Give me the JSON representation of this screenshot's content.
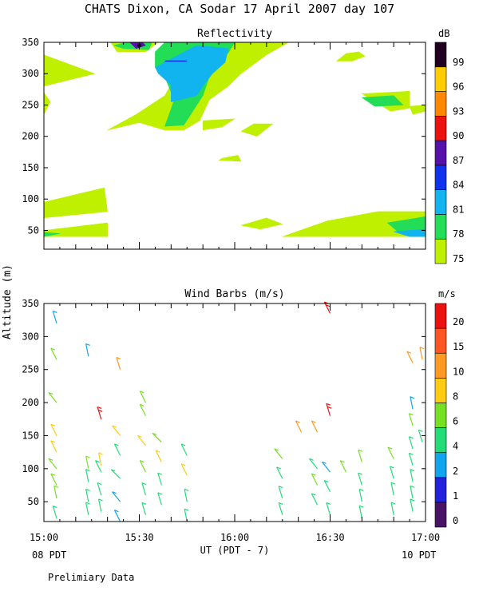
{
  "title": "CHATS Dixon, CA  Sodar  17 April 2007  day 107",
  "y_axis_label": "Altitude (m)",
  "x_axis_label": "UT  (PDT - 7)",
  "footer_left_time": "08 PDT",
  "footer_right_time": "10 PDT",
  "footer_note": "Prelimiary Data",
  "chart_data": [
    {
      "type": "heatmap",
      "title": "Reflectivity",
      "colorbar_unit": "dB",
      "xlim": [
        900,
        1020
      ],
      "ylim": [
        20,
        350
      ],
      "x_ticks": [
        {
          "minute": 900,
          "label": "15:00"
        },
        {
          "minute": 930,
          "label": "15:30"
        },
        {
          "minute": 960,
          "label": "16:00"
        },
        {
          "minute": 990,
          "label": "16:30"
        },
        {
          "minute": 1020,
          "label": "17:00"
        }
      ],
      "y_ticks": [
        50,
        100,
        150,
        200,
        250,
        300,
        350
      ],
      "legend": {
        "labels": [
          "75",
          "78",
          "81",
          "84",
          "87",
          "90",
          "93",
          "96",
          "99"
        ],
        "colors": [
          "#bff000",
          "#22dd55",
          "#11b4ee",
          "#1133ee",
          "#5511aa",
          "#ee1111",
          "#ff8800",
          "#ffcc00",
          "#220022"
        ]
      },
      "regions": [
        {
          "level": "75",
          "color": "#bff000",
          "points": [
            [
              900,
              330
            ],
            [
              916,
              300
            ],
            [
              900,
              280
            ]
          ]
        },
        {
          "level": "75",
          "color": "#bff000",
          "points": [
            [
              900,
              270
            ],
            [
              902,
              255
            ],
            [
              900,
              235
            ]
          ]
        },
        {
          "level": "75",
          "color": "#bff000",
          "points": [
            [
              921,
              350
            ],
            [
              936,
              350
            ],
            [
              932,
              335
            ],
            [
              923,
              335
            ]
          ]
        },
        {
          "level": "75",
          "color": "#bff000",
          "points": [
            [
              935,
              330
            ],
            [
              938,
              350
            ],
            [
              977,
              350
            ],
            [
              970,
              330
            ],
            [
              962,
              300
            ],
            [
              958,
              280
            ],
            [
              952,
              258
            ],
            [
              949,
              225
            ],
            [
              944,
              210
            ],
            [
              938,
              210
            ],
            [
              930,
              222
            ],
            [
              920,
              210
            ],
            [
              929,
              235
            ],
            [
              938,
              265
            ],
            [
              941,
              292
            ]
          ]
        },
        {
          "level": "75",
          "color": "#bff000",
          "points": [
            [
              992,
              320
            ],
            [
              995,
              332
            ],
            [
              999,
              335
            ],
            [
              1001,
              328
            ],
            [
              997,
              320
            ]
          ]
        },
        {
          "level": "75",
          "color": "#bff000",
          "points": [
            [
              950,
              225
            ],
            [
              960,
              228
            ],
            [
              956,
              215
            ],
            [
              950,
              210
            ]
          ]
        },
        {
          "level": "75",
          "color": "#bff000",
          "points": [
            [
              966,
              220
            ],
            [
              972,
              220
            ],
            [
              967,
              200
            ],
            [
              962,
              208
            ]
          ]
        },
        {
          "level": "75",
          "color": "#bff000",
          "points": [
            [
              955,
              162
            ],
            [
              962,
              160
            ],
            [
              961,
              170
            ],
            [
              956,
              165
            ]
          ]
        },
        {
          "level": "75",
          "color": "#bff000",
          "points": [
            [
              900,
              95
            ],
            [
              919,
              118
            ],
            [
              920,
              80
            ],
            [
              900,
              70
            ]
          ]
        },
        {
          "level": "75",
          "color": "#bff000",
          "points": [
            [
              900,
              50
            ],
            [
              920,
              62
            ],
            [
              920,
              40
            ],
            [
              900,
              40
            ]
          ]
        },
        {
          "level": "75",
          "color": "#bff000",
          "points": [
            [
              962,
              58
            ],
            [
              970,
              70
            ],
            [
              975,
              60
            ],
            [
              968,
              52
            ]
          ]
        },
        {
          "level": "75",
          "color": "#bff000",
          "points": [
            [
              975,
              40
            ],
            [
              989,
              65
            ],
            [
              1005,
              80
            ],
            [
              1020,
              80
            ],
            [
              1020,
              40
            ]
          ]
        },
        {
          "level": "75",
          "color": "#bff000",
          "points": [
            [
              1015,
              248
            ],
            [
              1020,
              250
            ],
            [
              1020,
              240
            ],
            [
              1016,
              235
            ]
          ]
        },
        {
          "level": "75",
          "color": "#bff000",
          "points": [
            [
              1000,
              268
            ],
            [
              1015,
              272
            ],
            [
              1015,
              245
            ],
            [
              1009,
              240
            ]
          ]
        },
        {
          "level": "78",
          "color": "#22dd55",
          "points": [
            [
              922,
              345
            ],
            [
              926,
              350
            ],
            [
              934,
              350
            ],
            [
              933,
              338
            ],
            [
              925,
              340
            ]
          ]
        },
        {
          "level": "78",
          "color": "#22dd55",
          "points": [
            [
              935,
              335
            ],
            [
              938,
              350
            ],
            [
              960,
              350
            ],
            [
              958,
              333
            ],
            [
              954,
              315
            ],
            [
              952,
              295
            ],
            [
              950,
              265
            ],
            [
              944,
              218
            ],
            [
              938,
              216
            ],
            [
              941,
              258
            ],
            [
              938,
              295
            ],
            [
              935,
              310
            ]
          ]
        },
        {
          "level": "78",
          "color": "#22dd55",
          "points": [
            [
              1000,
              262
            ],
            [
              1010,
              265
            ],
            [
              1013,
              250
            ],
            [
              1004,
              248
            ]
          ]
        },
        {
          "level": "78",
          "color": "#22dd55",
          "points": [
            [
              1008,
              62
            ],
            [
              1020,
              72
            ],
            [
              1020,
              50
            ],
            [
              1012,
              45
            ]
          ]
        },
        {
          "level": "78",
          "color": "#22dd55",
          "points": [
            [
              900,
              47
            ],
            [
              905,
              45
            ],
            [
              900,
              40
            ]
          ]
        },
        {
          "level": "81",
          "color": "#11b4ee",
          "points": [
            [
              935,
              310
            ],
            [
              948,
              345
            ],
            [
              958,
              340
            ],
            [
              957,
              318
            ],
            [
              953,
              300
            ],
            [
              950,
              280
            ],
            [
              948,
              265
            ],
            [
              940,
              255
            ],
            [
              940,
              282
            ],
            [
              936,
              300
            ]
          ]
        },
        {
          "level": "81",
          "color": "#11b4ee",
          "points": [
            [
              1010,
              48
            ],
            [
              1020,
              52
            ],
            [
              1020,
              40
            ],
            [
              1015,
              40
            ]
          ]
        },
        {
          "level": "87",
          "color": "#5511aa",
          "points": [
            [
              927,
              350
            ],
            [
              929,
              340
            ],
            [
              932,
              345
            ],
            [
              931,
              350
            ]
          ]
        }
      ]
    },
    {
      "type": "scatter",
      "title": "Wind Barbs (m/s)",
      "colorbar_unit": "m/s",
      "xlim": [
        900,
        1020
      ],
      "ylim": [
        20,
        350
      ],
      "x_ticks": [
        {
          "minute": 900,
          "label": "15:00"
        },
        {
          "minute": 930,
          "label": "15:30"
        },
        {
          "minute": 960,
          "label": "16:00"
        },
        {
          "minute": 990,
          "label": "16:30"
        },
        {
          "minute": 1020,
          "label": "17:00"
        }
      ],
      "y_ticks": [
        50,
        100,
        150,
        200,
        250,
        300,
        350
      ],
      "legend": {
        "labels": [
          "0",
          "1",
          "2",
          "4",
          "6",
          "8",
          "10",
          "15",
          "20"
        ],
        "colors": [
          "#4a1466",
          "#2222dd",
          "#11a5ee",
          "#22dd77",
          "#77e022",
          "#ffcc11",
          "#ff9922",
          "#ff5522",
          "#ee1111"
        ]
      },
      "barbs": [
        [
          904,
          25,
          4,
          10,
          -3
        ],
        [
          904,
          55,
          6,
          10,
          -2
        ],
        [
          904,
          75,
          6,
          10,
          -5
        ],
        [
          904,
          100,
          6,
          10,
          -8
        ],
        [
          904,
          125,
          8,
          10,
          -5
        ],
        [
          904,
          150,
          8,
          10,
          -5
        ],
        [
          904,
          200,
          6,
          10,
          -8
        ],
        [
          904,
          265,
          6,
          10,
          -5
        ],
        [
          904,
          320,
          2,
          10,
          -3
        ],
        [
          914,
          30,
          4,
          10,
          -2
        ],
        [
          914,
          50,
          4,
          10,
          -2
        ],
        [
          914,
          80,
          4,
          10,
          -2
        ],
        [
          914,
          100,
          6,
          10,
          -2
        ],
        [
          914,
          270,
          2,
          10,
          -2
        ],
        [
          918,
          35,
          4,
          10,
          -2
        ],
        [
          918,
          60,
          4,
          10,
          -3
        ],
        [
          918,
          95,
          4,
          10,
          -5
        ],
        [
          918,
          105,
          8,
          10,
          -2
        ],
        [
          918,
          175,
          20,
          10,
          -3
        ],
        [
          924,
          20,
          2,
          10,
          -5
        ],
        [
          924,
          50,
          2,
          10,
          -8
        ],
        [
          924,
          85,
          4,
          10,
          -10
        ],
        [
          924,
          120,
          4,
          10,
          -5
        ],
        [
          924,
          150,
          8,
          10,
          -8
        ],
        [
          924,
          250,
          10,
          10,
          -3
        ],
        [
          932,
          30,
          4,
          10,
          -3
        ],
        [
          932,
          60,
          4,
          10,
          -3
        ],
        [
          932,
          95,
          6,
          10,
          -5
        ],
        [
          932,
          135,
          8,
          10,
          -8
        ],
        [
          932,
          180,
          6,
          10,
          -5
        ],
        [
          932,
          200,
          6,
          10,
          -5
        ],
        [
          937,
          45,
          4,
          10,
          -3
        ],
        [
          937,
          75,
          4,
          10,
          -3
        ],
        [
          937,
          110,
          8,
          10,
          -5
        ],
        [
          937,
          140,
          6,
          10,
          -10
        ],
        [
          945,
          20,
          4,
          10,
          -2
        ],
        [
          945,
          50,
          4,
          10,
          -2
        ],
        [
          945,
          90,
          8,
          10,
          -5
        ],
        [
          945,
          120,
          4,
          10,
          -5
        ],
        [
          975,
          30,
          4,
          10,
          -3
        ],
        [
          975,
          55,
          4,
          10,
          -3
        ],
        [
          975,
          85,
          4,
          10,
          -5
        ],
        [
          975,
          115,
          6,
          10,
          -8
        ],
        [
          981,
          155,
          10,
          10,
          -5
        ],
        [
          986,
          45,
          4,
          10,
          -5
        ],
        [
          986,
          75,
          6,
          10,
          -5
        ],
        [
          986,
          100,
          4,
          10,
          -8
        ],
        [
          986,
          155,
          10,
          10,
          -5
        ],
        [
          990,
          30,
          4,
          10,
          -3
        ],
        [
          990,
          65,
          4,
          10,
          -5
        ],
        [
          990,
          95,
          2,
          10,
          -8
        ],
        [
          990,
          180,
          20,
          10,
          -3
        ],
        [
          990,
          335,
          20,
          10,
          -5
        ],
        [
          995,
          95,
          6,
          10,
          -5
        ],
        [
          1000,
          25,
          4,
          10,
          -2
        ],
        [
          1000,
          50,
          4,
          10,
          -2
        ],
        [
          1000,
          75,
          4,
          10,
          -3
        ],
        [
          1000,
          110,
          6,
          10,
          -3
        ],
        [
          1010,
          30,
          4,
          10,
          -2
        ],
        [
          1010,
          60,
          4,
          10,
          -2
        ],
        [
          1010,
          85,
          4,
          10,
          -3
        ],
        [
          1010,
          115,
          6,
          10,
          -5
        ],
        [
          1016,
          35,
          4,
          10,
          -2
        ],
        [
          1016,
          55,
          4,
          10,
          -2
        ],
        [
          1016,
          80,
          4,
          10,
          -2
        ],
        [
          1016,
          105,
          4,
          10,
          -3
        ],
        [
          1016,
          130,
          4,
          10,
          -3
        ],
        [
          1016,
          165,
          6,
          10,
          -3
        ],
        [
          1016,
          190,
          2,
          10,
          -2
        ],
        [
          1016,
          260,
          10,
          10,
          -5
        ],
        [
          1019,
          140,
          4,
          10,
          -3
        ],
        [
          1019,
          265,
          10,
          10,
          -2
        ]
      ]
    }
  ]
}
